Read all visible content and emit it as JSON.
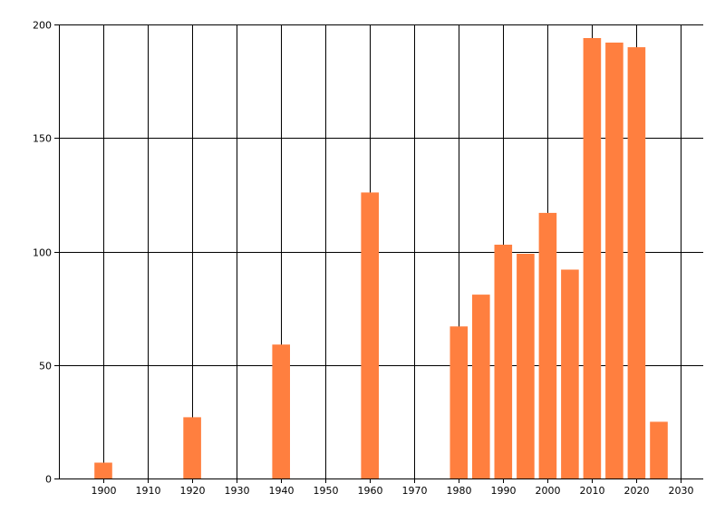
{
  "chart_data": {
    "type": "bar",
    "title": "",
    "xlabel": "",
    "ylabel": "",
    "x": [
      1900,
      1920,
      1940,
      1960,
      1980,
      1985,
      1990,
      1995,
      2000,
      2005,
      2010,
      2015,
      2020,
      2025
    ],
    "values": [
      7,
      27,
      59,
      126,
      67,
      81,
      103,
      99,
      117,
      92,
      194,
      192,
      190,
      25
    ],
    "xlim": [
      1890,
      2035
    ],
    "ylim": [
      0,
      200
    ],
    "x_ticks": [
      "1900",
      "1910",
      "1920",
      "1930",
      "1940",
      "1950",
      "1960",
      "1970",
      "1980",
      "1990",
      "2000",
      "2010",
      "2020",
      "2030"
    ],
    "y_ticks": [
      "0",
      "50",
      "100",
      "150",
      "200"
    ],
    "grid": true,
    "bar_color": "#ff7f3f"
  }
}
